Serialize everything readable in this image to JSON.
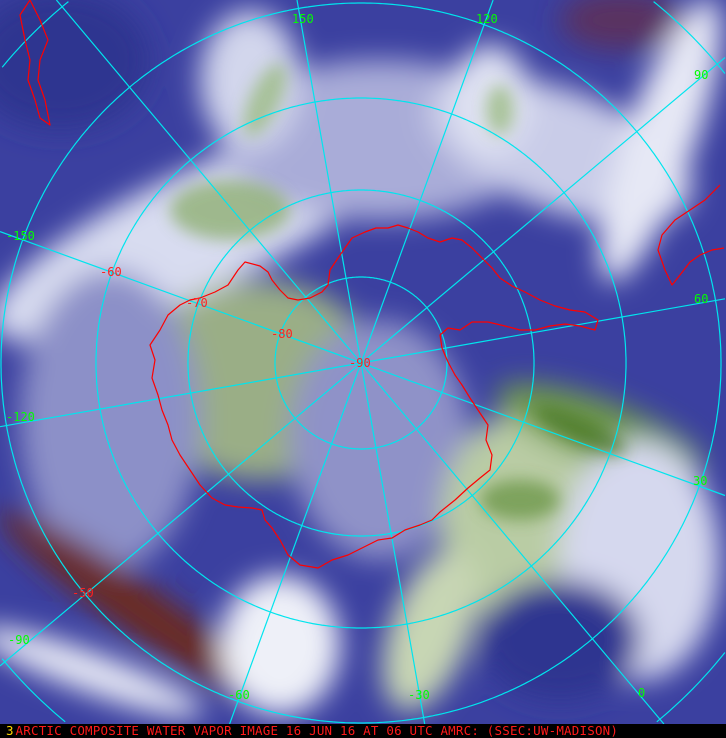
{
  "caption": "ARCTIC COMPOSITE WATER VAPOR IMAGE 16 JUN 16 AT 06 UTC AMRC: (SSEC:UW-MADISON)",
  "frame_number": "3",
  "colors": {
    "grid": "#00e5ee",
    "longitude_labels": "#00ff00",
    "latitude_labels": "#ff2020",
    "coastline": "#ff0000",
    "moist": "#f2f2fa",
    "dry": "#2e3490",
    "very_dry": "#6a2a20",
    "cold_high": "#6f9a4e"
  },
  "longitude_labels": [
    "150",
    "120",
    "90",
    "60",
    "30",
    "0",
    "-30",
    "-60",
    "-90",
    "-120",
    "-150"
  ],
  "latitude_labels": [
    "-90",
    "-80",
    "-70",
    "-60",
    "-50"
  ]
}
